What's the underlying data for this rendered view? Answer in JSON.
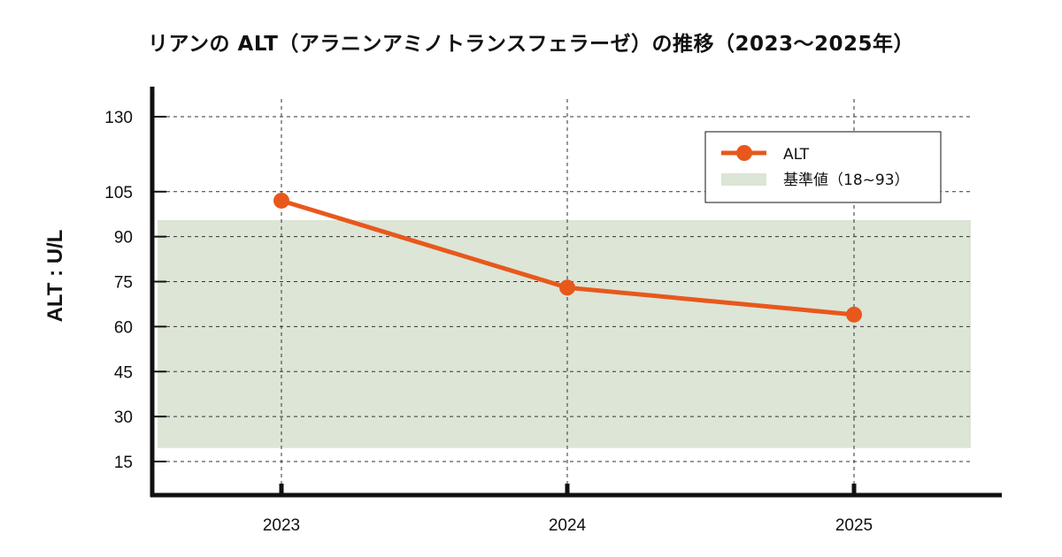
{
  "chart_data": {
    "type": "line",
    "title": "リアンの ALT（アラニンアミノトランスフェラーゼ）の推移（2023〜2025年）",
    "xlabel": "",
    "ylabel": "ALT : U/L",
    "categories": [
      "2023",
      "2024",
      "2025"
    ],
    "series": [
      {
        "name": "ALT",
        "values": [
          102,
          73,
          64
        ],
        "color": "#e8581c"
      }
    ],
    "reference_band": {
      "name": "基準値（18~93）",
      "low": 18,
      "high": 93,
      "color": "#dce5d6"
    },
    "yticks": [
      15,
      30,
      45,
      60,
      75,
      90,
      105,
      130
    ],
    "ylim": [
      5,
      135
    ],
    "grid": true,
    "legend_position": "top-right"
  }
}
